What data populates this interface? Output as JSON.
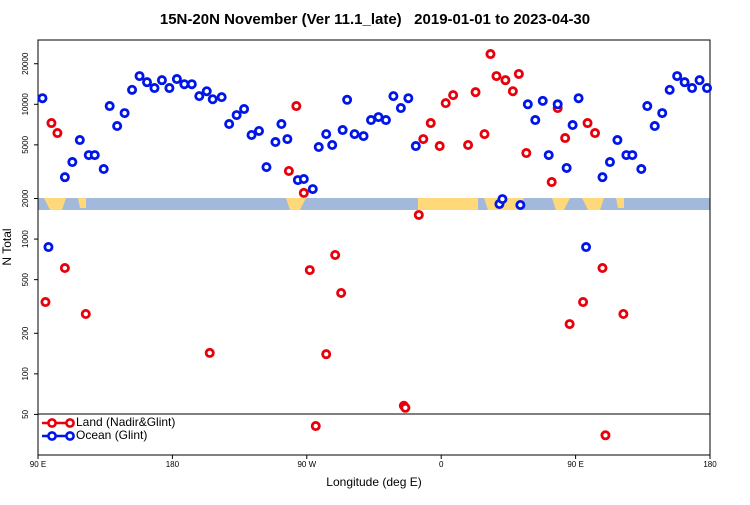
{
  "chart_data": {
    "type": "scatter",
    "title": "15N-20N November (Ver 11.1_late)   2019-01-01 to 2023-04-30",
    "x_label": "Longitude (deg E)",
    "y_label": "N Total",
    "xlim": [
      90,
      540
    ],
    "xticks": [
      {
        "value": 90,
        "label": "90 E"
      },
      180,
      {
        "value": 270,
        "label": "90 W"
      },
      {
        "value": 360,
        "label": "0"
      },
      {
        "value": 450,
        "label": "90 E"
      },
      {
        "value": 540,
        "label": "180"
      }
    ],
    "ylim": [
      25,
      30000
    ],
    "ylog": true,
    "yticks": [
      50,
      100,
      200,
      500,
      1000,
      2000,
      5000,
      10000,
      20000
    ],
    "legend": "lower left",
    "series": [
      {
        "name": "Land (Nadir&Glint)",
        "color": "#e8000b",
        "x": [
          95,
          99,
          103,
          108,
          122,
          205,
          258,
          263,
          268,
          272,
          276,
          283,
          289,
          293,
          335,
          336,
          345,
          348,
          353,
          359,
          363,
          368,
          378,
          383,
          389,
          393,
          397,
          403,
          408,
          412,
          417,
          434,
          438,
          443,
          446,
          455,
          458,
          463,
          468,
          470,
          482
        ],
        "values": [
          341,
          7260,
          6120,
          610,
          278,
          143,
          3200,
          9710,
          2200,
          589,
          41,
          140,
          762,
          398,
          58,
          56,
          1510,
          5520,
          7260,
          4900,
          10200,
          11700,
          4990,
          12300,
          6010,
          23600,
          16200,
          15100,
          12500,
          16800,
          4350,
          2650,
          9380,
          5620,
          234,
          341,
          7260,
          6120,
          610,
          35,
          278
        ]
      },
      {
        "name": "Ocean (Glint)",
        "color": "#0016e8",
        "x": [
          93,
          97,
          108,
          113,
          118,
          124,
          128,
          134,
          138,
          143,
          148,
          153,
          158,
          163,
          168,
          173,
          178,
          183,
          188,
          193,
          198,
          203,
          207,
          213,
          218,
          223,
          228,
          233,
          238,
          243,
          249,
          253,
          257,
          264,
          268,
          274,
          278,
          283,
          287,
          294,
          297,
          302,
          308,
          313,
          318,
          323,
          328,
          333,
          338,
          343,
          399,
          401,
          413,
          418,
          423,
          428,
          432,
          438,
          444,
          448,
          452,
          457,
          468,
          473,
          478,
          484,
          488,
          494,
          498,
          503,
          508,
          513,
          518,
          523,
          528,
          533,
          538
        ],
        "values": [
          11100,
          873,
          2880,
          3730,
          5430,
          4200,
          4200,
          3310,
          9710,
          6900,
          8610,
          12800,
          16200,
          14600,
          13200,
          15100,
          13200,
          15400,
          14100,
          14100,
          11500,
          12500,
          10900,
          11300,
          7140,
          8320,
          9220,
          5920,
          6340,
          3420,
          5250,
          7140,
          5520,
          2740,
          2790,
          2350,
          4820,
          6010,
          4990,
          6440,
          10800,
          6010,
          5810,
          7640,
          8040,
          7640,
          11500,
          9380,
          11100,
          4900,
          1820,
          1980,
          1790,
          10000,
          7640,
          10600,
          4200,
          10000,
          3370,
          7020,
          11100,
          873,
          2880,
          3730,
          5430,
          4200,
          4200,
          3310,
          9710,
          6900,
          8610,
          12800,
          16200,
          14600,
          13200,
          15100,
          13200
        ]
      }
    ]
  }
}
